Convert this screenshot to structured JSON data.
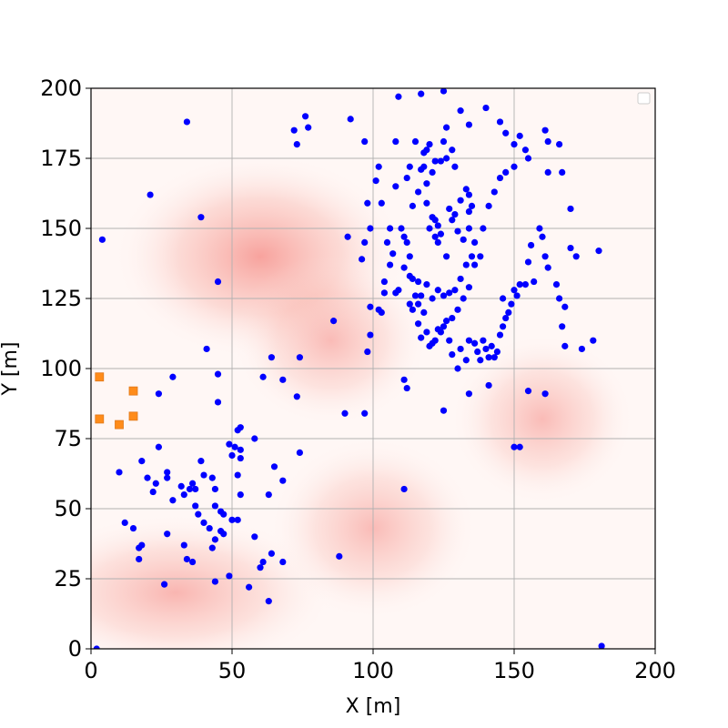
{
  "chart_data": {
    "type": "scatter",
    "xlabel": "X [m]",
    "ylabel": "Y [m]",
    "xlim": [
      0,
      200
    ],
    "ylim": [
      0,
      200
    ],
    "xticks": [
      0,
      50,
      100,
      150,
      200
    ],
    "yticks": [
      0,
      25,
      50,
      75,
      100,
      125,
      150,
      175,
      200
    ],
    "grid": true,
    "legend": "top-right (empty)",
    "background": {
      "type": "heatmap",
      "colormap": "white-to-red",
      "hotspots": [
        {
          "x": 60,
          "y": 140,
          "sx": 24,
          "sy": 17,
          "w": 0.45
        },
        {
          "x": 85,
          "y": 110,
          "sx": 16,
          "sy": 14,
          "w": 0.32
        },
        {
          "x": 30,
          "y": 20,
          "sx": 26,
          "sy": 13,
          "w": 0.35
        },
        {
          "x": 100,
          "y": 43,
          "sx": 17,
          "sy": 15,
          "w": 0.32
        },
        {
          "x": 160,
          "y": 82,
          "sx": 15,
          "sy": 14,
          "w": 0.32
        }
      ]
    },
    "series": [
      {
        "marker": "circle",
        "color": "#0000ff",
        "points": [
          [
            34,
            188
          ],
          [
            21,
            162
          ],
          [
            4,
            146
          ],
          [
            39,
            154
          ],
          [
            45,
            131
          ],
          [
            41,
            107
          ],
          [
            29,
            97
          ],
          [
            24,
            91
          ],
          [
            45,
            98
          ],
          [
            45,
            88
          ],
          [
            72,
            185
          ],
          [
            76,
            190
          ],
          [
            77,
            186
          ],
          [
            73,
            180
          ],
          [
            92,
            189
          ],
          [
            97,
            181
          ],
          [
            102,
            172
          ],
          [
            98,
            159
          ],
          [
            96,
            139
          ],
          [
            91,
            147
          ],
          [
            97,
            145
          ],
          [
            99,
            150
          ],
          [
            101,
            167
          ],
          [
            103,
            159
          ],
          [
            99,
            122
          ],
          [
            99,
            112
          ],
          [
            98,
            106
          ],
          [
            86,
            117
          ],
          [
            74,
            104
          ],
          [
            64,
            104
          ],
          [
            68,
            96
          ],
          [
            61,
            97
          ],
          [
            73,
            90
          ],
          [
            90,
            84
          ],
          [
            97,
            84
          ],
          [
            109,
            197
          ],
          [
            108,
            181
          ],
          [
            117,
            198
          ],
          [
            125,
            199
          ],
          [
            131,
            192
          ],
          [
            134,
            187
          ],
          [
            140,
            193
          ],
          [
            145,
            188
          ],
          [
            147,
            184
          ],
          [
            150,
            180
          ],
          [
            152,
            183
          ],
          [
            154,
            178
          ],
          [
            161,
            185
          ],
          [
            162,
            181
          ],
          [
            166,
            180
          ],
          [
            108,
            165
          ],
          [
            113,
            172
          ],
          [
            112,
            168
          ],
          [
            115,
            181
          ],
          [
            118,
            177
          ],
          [
            119,
            178
          ],
          [
            120,
            180
          ],
          [
            122,
            174
          ],
          [
            125,
            181
          ],
          [
            126,
            186
          ],
          [
            128,
            178
          ],
          [
            129,
            172
          ],
          [
            126,
            175
          ],
          [
            124,
            174
          ],
          [
            117,
            171
          ],
          [
            118,
            172
          ],
          [
            119,
            166
          ],
          [
            121,
            170
          ],
          [
            116,
            163
          ],
          [
            114,
            158
          ],
          [
            119,
            159
          ],
          [
            120,
            150
          ],
          [
            121,
            154
          ],
          [
            122,
            153
          ],
          [
            123,
            151
          ],
          [
            124,
            148
          ],
          [
            122,
            147
          ],
          [
            123,
            145
          ],
          [
            126,
            140
          ],
          [
            129,
            155
          ],
          [
            131,
            160
          ],
          [
            133,
            164
          ],
          [
            134,
            162
          ],
          [
            134,
            156
          ],
          [
            135,
            158
          ],
          [
            127,
            157
          ],
          [
            128,
            153
          ],
          [
            130,
            149
          ],
          [
            132,
            146
          ],
          [
            134,
            150
          ],
          [
            136,
            145
          ],
          [
            135,
            140
          ],
          [
            133,
            137
          ],
          [
            131,
            132
          ],
          [
            129,
            128
          ],
          [
            127,
            127
          ],
          [
            125,
            126
          ],
          [
            123,
            128
          ],
          [
            121,
            125
          ],
          [
            119,
            130
          ],
          [
            117,
            126
          ],
          [
            116,
            131
          ],
          [
            114,
            132
          ],
          [
            113,
            140
          ],
          [
            112,
            145
          ],
          [
            111,
            147
          ],
          [
            110,
            150
          ],
          [
            106,
            150
          ],
          [
            106,
            137
          ],
          [
            104,
            131
          ],
          [
            104,
            127
          ],
          [
            102,
            121
          ],
          [
            103,
            120
          ],
          [
            108,
            127
          ],
          [
            113,
            123
          ],
          [
            114,
            121
          ],
          [
            116,
            116
          ],
          [
            117,
            111
          ],
          [
            119,
            113
          ],
          [
            121,
            109
          ],
          [
            123,
            114
          ],
          [
            125,
            115
          ],
          [
            127,
            110
          ],
          [
            128,
            105
          ],
          [
            130,
            100
          ],
          [
            131,
            107
          ],
          [
            133,
            103
          ],
          [
            134,
            110
          ],
          [
            136,
            109
          ],
          [
            137,
            106
          ],
          [
            138,
            103
          ],
          [
            139,
            110
          ],
          [
            140,
            107
          ],
          [
            141,
            104
          ],
          [
            142,
            108
          ],
          [
            143,
            104
          ],
          [
            144,
            106
          ],
          [
            145,
            112
          ],
          [
            146,
            115
          ],
          [
            147,
            118
          ],
          [
            146,
            125
          ],
          [
            148,
            120
          ],
          [
            149,
            123
          ],
          [
            150,
            128
          ],
          [
            151,
            126
          ],
          [
            152,
            130
          ],
          [
            154,
            130
          ],
          [
            155,
            138
          ],
          [
            156,
            144
          ],
          [
            157,
            131
          ],
          [
            159,
            150
          ],
          [
            160,
            147
          ],
          [
            161,
            140
          ],
          [
            162,
            136
          ],
          [
            165,
            130
          ],
          [
            166,
            125
          ],
          [
            168,
            122
          ],
          [
            170,
            143
          ],
          [
            172,
            140
          ],
          [
            174,
            107
          ],
          [
            178,
            110
          ],
          [
            180,
            142
          ],
          [
            167,
            115
          ],
          [
            168,
            108
          ],
          [
            170,
            157
          ],
          [
            167,
            170
          ],
          [
            162,
            170
          ],
          [
            155,
            175
          ],
          [
            150,
            172
          ],
          [
            147,
            170
          ],
          [
            145,
            168
          ],
          [
            143,
            163
          ],
          [
            141,
            158
          ],
          [
            139,
            150
          ],
          [
            138,
            140
          ],
          [
            136,
            137
          ],
          [
            134,
            129
          ],
          [
            132,
            125
          ],
          [
            130,
            121
          ],
          [
            128,
            118
          ],
          [
            126,
            117
          ],
          [
            124,
            113
          ],
          [
            122,
            110
          ],
          [
            120,
            108
          ],
          [
            118,
            120
          ],
          [
            116,
            123
          ],
          [
            115,
            126
          ],
          [
            113,
            133
          ],
          [
            111,
            136
          ],
          [
            109,
            128
          ],
          [
            107,
            141
          ],
          [
            105,
            145
          ],
          [
            111,
            96
          ],
          [
            112,
            93
          ],
          [
            125,
            85
          ],
          [
            134,
            91
          ],
          [
            141,
            94
          ],
          [
            150,
            72
          ],
          [
            152,
            72
          ],
          [
            155,
            92
          ],
          [
            161,
            91
          ],
          [
            111,
            57
          ],
          [
            88,
            33
          ],
          [
            52,
            78
          ],
          [
            53,
            79
          ],
          [
            49,
            73
          ],
          [
            51,
            72
          ],
          [
            53,
            71
          ],
          [
            50,
            69
          ],
          [
            53,
            68
          ],
          [
            52,
            62
          ],
          [
            53,
            55
          ],
          [
            52,
            46
          ],
          [
            50,
            46
          ],
          [
            49,
            26
          ],
          [
            44,
            24
          ],
          [
            46,
            42
          ],
          [
            47,
            41
          ],
          [
            44,
            39
          ],
          [
            43,
            36
          ],
          [
            44,
            51
          ],
          [
            46,
            49
          ],
          [
            47,
            48
          ],
          [
            43,
            61
          ],
          [
            44,
            57
          ],
          [
            40,
            62
          ],
          [
            39,
            67
          ],
          [
            37,
            57
          ],
          [
            36,
            59
          ],
          [
            35,
            57
          ],
          [
            33,
            55
          ],
          [
            32,
            58
          ],
          [
            29,
            53
          ],
          [
            27,
            63
          ],
          [
            27,
            61
          ],
          [
            24,
            72
          ],
          [
            23,
            59
          ],
          [
            22,
            56
          ],
          [
            20,
            61
          ],
          [
            18,
            67
          ],
          [
            15,
            43
          ],
          [
            12,
            45
          ],
          [
            10,
            63
          ],
          [
            17,
            36
          ],
          [
            18,
            37
          ],
          [
            17,
            32
          ],
          [
            27,
            41
          ],
          [
            33,
            37
          ],
          [
            34,
            32
          ],
          [
            36,
            31
          ],
          [
            37,
            51
          ],
          [
            38,
            48
          ],
          [
            40,
            45
          ],
          [
            42,
            43
          ],
          [
            58,
            40
          ],
          [
            60,
            29
          ],
          [
            61,
            31
          ],
          [
            64,
            34
          ],
          [
            68,
            31
          ],
          [
            63,
            17
          ],
          [
            56,
            22
          ],
          [
            26,
            23
          ],
          [
            63,
            55
          ],
          [
            65,
            65
          ],
          [
            68,
            60
          ],
          [
            74,
            70
          ],
          [
            58,
            75
          ],
          [
            2,
            0
          ],
          [
            181,
            1
          ]
        ]
      },
      {
        "marker": "square",
        "color": "#ff8c1a",
        "points": [
          [
            3,
            97
          ],
          [
            3,
            82
          ],
          [
            10,
            80
          ],
          [
            15,
            92
          ],
          [
            15,
            83
          ]
        ]
      }
    ]
  }
}
